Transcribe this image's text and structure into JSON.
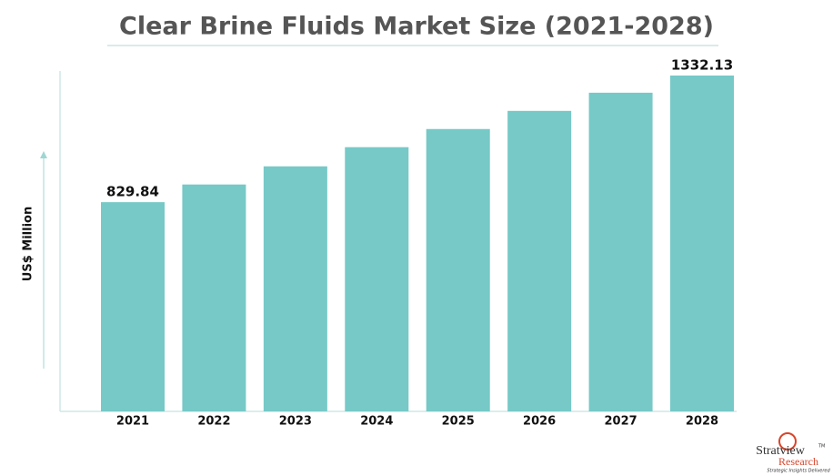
{
  "chart_data": {
    "type": "bar",
    "title": "Clear Brine Fluids Market Size (2021-2028)",
    "y_label": "US$ Million",
    "categories": [
      "2021",
      "2022",
      "2023",
      "2024",
      "2025",
      "2026",
      "2027",
      "2028"
    ],
    "values": [
      829.84,
      900,
      972,
      1048,
      1120,
      1192,
      1264,
      1332.13
    ],
    "value_labels": [
      "829.84",
      null,
      null,
      null,
      null,
      null,
      null,
      "1332.13"
    ],
    "color": "#76c9c7"
  },
  "logo": {
    "name": "Stratview",
    "tm": "TM",
    "sub": "Research",
    "tagline": "Strategic Insights Delivered"
  }
}
